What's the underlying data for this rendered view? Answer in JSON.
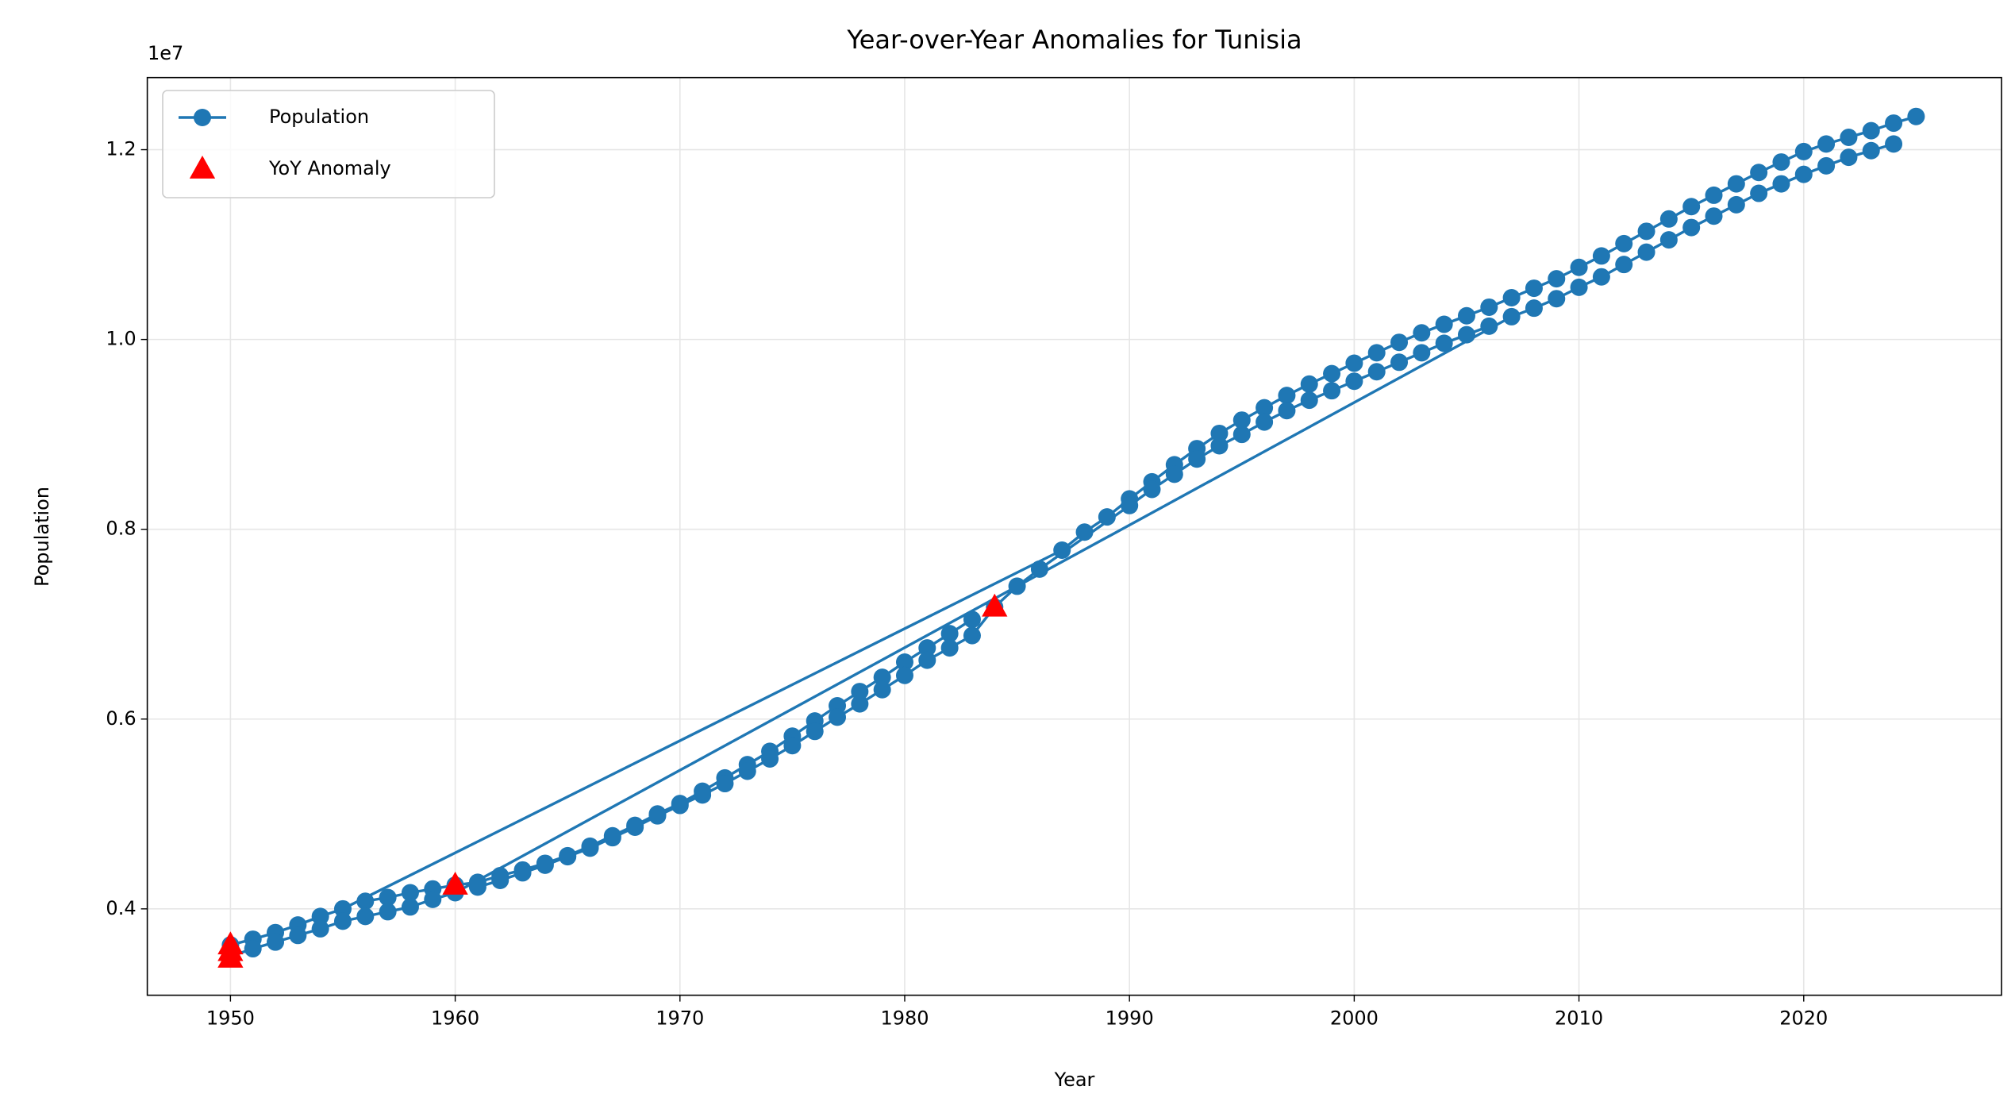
{
  "chart_data": {
    "type": "line",
    "title": "Year-over-Year Anomalies for Tunisia",
    "xlabel": "Year",
    "ylabel": "Population",
    "y_offset_label": "1e7",
    "xlim": [
      1946.3,
      2028.8
    ],
    "xticks": [
      1950,
      1960,
      1970,
      1980,
      1990,
      2000,
      2010,
      2020
    ],
    "ylim": [
      0.309,
      1.276
    ],
    "yticks": [
      0.4,
      0.6,
      0.8,
      {
        "value": 1,
        "label": "1.0"
      },
      1.2
    ],
    "grid": true,
    "legend": "upper left",
    "series": [
      {
        "name": "Population",
        "color": "#1f77b4",
        "marker": "circle",
        "x": [
          1950,
          1951,
          1952,
          1953,
          1954,
          1955,
          1987,
          1988,
          1989,
          1990,
          1991,
          1992,
          1993,
          1994,
          1995,
          1996,
          1997,
          1998,
          1999,
          2000,
          2001,
          2002,
          2003,
          2004,
          2005,
          2006,
          2007,
          2008,
          2009,
          2010,
          2011,
          2012,
          2013,
          2014,
          2015,
          2016,
          2017,
          2018,
          2019,
          2020,
          2021,
          2022,
          2023,
          2024,
          2025,
          null,
          1956,
          1957,
          1958,
          1959,
          1960,
          1961,
          1962,
          1963,
          1964,
          1965,
          1966,
          1967,
          1968,
          1969,
          1970,
          1971,
          1972,
          1973,
          1974,
          1975,
          1976,
          1977,
          1978,
          1979,
          1980,
          1981,
          1982,
          1983,
          null,
          1961,
          1962,
          1963,
          1964,
          1965,
          1966,
          1967,
          1968,
          1969,
          1970,
          1971,
          1972,
          1973,
          1974,
          1975,
          1976,
          1977,
          1978,
          1979,
          1980,
          1981,
          1982,
          1983,
          1984,
          1985,
          1986,
          1990,
          1991,
          1992,
          1993,
          1994,
          1995,
          1996,
          1997,
          1998,
          1999,
          2000,
          2001,
          2002,
          2003,
          2004,
          2005,
          2006,
          null,
          1950,
          1951,
          1952,
          1953,
          1954,
          1955,
          1956,
          1957,
          1958,
          1959,
          1960,
          2007,
          2008,
          2009,
          2010,
          2011,
          2012,
          2013,
          2014,
          2015,
          2016,
          2017,
          2018,
          2019,
          2020,
          2021,
          2022,
          2023,
          2024
        ],
        "values": [
          0.362,
          0.368,
          0.375,
          0.383,
          0.392,
          0.4,
          0.778,
          0.797,
          0.813,
          0.832,
          0.85,
          0.868,
          0.885,
          0.901,
          0.915,
          0.928,
          0.941,
          0.953,
          0.964,
          0.975,
          0.986,
          0.997,
          1.007,
          1.016,
          1.025,
          1.034,
          1.044,
          1.054,
          1.064,
          1.076,
          1.088,
          1.101,
          1.114,
          1.127,
          1.14,
          1.152,
          1.164,
          1.176,
          1.187,
          1.198,
          1.206,
          1.213,
          1.22,
          1.228,
          1.235,
          null,
          0.408,
          0.412,
          0.417,
          0.421,
          0.425,
          0.428,
          0.435,
          0.441,
          0.448,
          0.456,
          0.466,
          0.477,
          0.488,
          0.5,
          0.511,
          0.524,
          0.538,
          0.552,
          0.566,
          0.582,
          0.598,
          0.614,
          0.629,
          0.644,
          0.66,
          0.675,
          0.69,
          0.705,
          null,
          0.423,
          0.43,
          0.438,
          0.446,
          0.455,
          0.464,
          0.475,
          0.486,
          0.498,
          0.509,
          0.52,
          0.532,
          0.545,
          0.558,
          0.572,
          0.587,
          0.602,
          0.616,
          0.631,
          0.646,
          0.662,
          0.675,
          0.688,
          0.718,
          0.74,
          0.758,
          0.825,
          0.842,
          0.858,
          0.874,
          0.888,
          0.9,
          0.913,
          0.925,
          0.936,
          0.946,
          0.956,
          0.966,
          0.976,
          0.986,
          0.996,
          1.005,
          1.014,
          null,
          0.35,
          0.358,
          0.365,
          0.372,
          0.379,
          0.387,
          0.392,
          0.397,
          0.402,
          0.41,
          0.417,
          1.024,
          1.033,
          1.043,
          1.055,
          1.066,
          1.079,
          1.092,
          1.105,
          1.118,
          1.13,
          1.142,
          1.154,
          1.164,
          1.174,
          1.183,
          1.192,
          1.199,
          1.206
        ]
      },
      {
        "name": "YoY Anomaly",
        "color": "#ff0000",
        "marker": "triangle",
        "x": [
          1950,
          1950,
          1950,
          1960,
          1984
        ],
        "values": [
          0.348,
          0.355,
          0.362,
          0.425,
          0.718
        ]
      }
    ]
  }
}
